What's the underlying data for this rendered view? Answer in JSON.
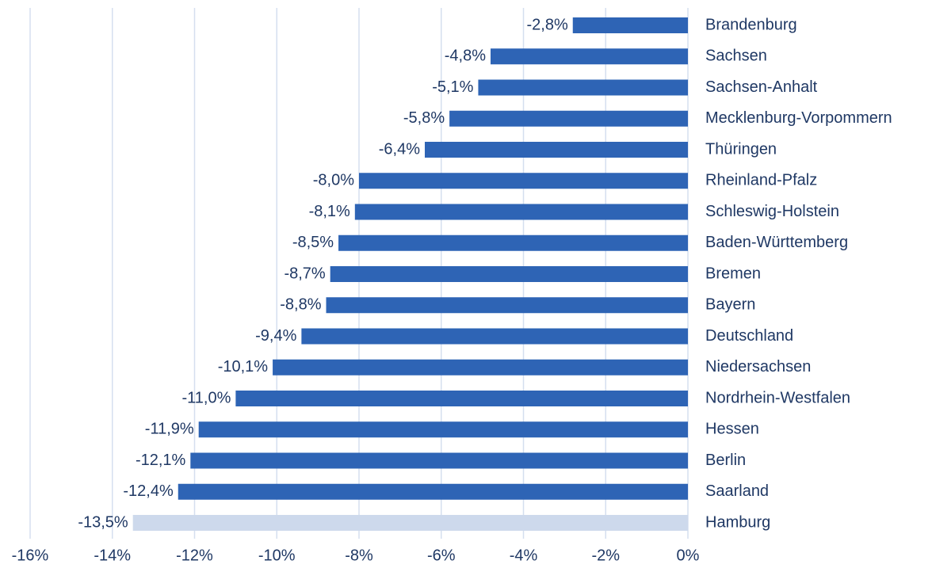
{
  "chart_data": {
    "type": "bar",
    "orientation": "horizontal",
    "categories": [
      "Brandenburg",
      "Sachsen",
      "Sachsen-Anhalt",
      "Mecklenburg-Vorpommern",
      "Thüringen",
      "Rheinland-Pfalz",
      "Schleswig-Holstein",
      "Baden-Württemberg",
      "Bremen",
      "Bayern",
      "Deutschland",
      "Niedersachsen",
      "Nordrhein-Westfalen",
      "Hessen",
      "Berlin",
      "Saarland",
      "Hamburg"
    ],
    "values": [
      -2.8,
      -4.8,
      -5.1,
      -5.8,
      -6.4,
      -8.0,
      -8.1,
      -8.5,
      -8.7,
      -8.8,
      -9.4,
      -10.1,
      -11.0,
      -11.9,
      -12.1,
      -12.4,
      -13.5
    ],
    "value_labels": [
      "-2,8%",
      "-4,8%",
      "-5,1%",
      "-5,8%",
      "-6,4%",
      "-8,0%",
      "-8,1%",
      "-8,5%",
      "-8,7%",
      "-8,8%",
      "-9,4%",
      "-10,1%",
      "-11,0%",
      "-11,9%",
      "-12,1%",
      "-12,4%",
      "-13,5%"
    ],
    "colors": [
      "#2e64b5",
      "#2e64b5",
      "#2e64b5",
      "#2e64b5",
      "#2e64b5",
      "#2e64b5",
      "#2e64b5",
      "#2e64b5",
      "#2e64b5",
      "#2e64b5",
      "#2e64b5",
      "#2e64b5",
      "#2e64b5",
      "#2e64b5",
      "#2e64b5",
      "#2e64b5",
      "#cdd9ec"
    ],
    "xlim": [
      -16,
      0
    ],
    "xticks": [
      {
        "value": -16,
        "label": "-16%"
      },
      {
        "value": -14,
        "label": "-14%"
      },
      {
        "value": -12,
        "label": "-12%"
      },
      {
        "value": -10,
        "label": "-10%"
      },
      {
        "value": -8,
        "label": "-8%"
      },
      {
        "value": -6,
        "label": "-6%"
      },
      {
        "value": -4,
        "label": "-4%"
      },
      {
        "value": -2,
        "label": "-2%"
      },
      {
        "value": 0,
        "label": "0%"
      }
    ],
    "grid": true
  }
}
